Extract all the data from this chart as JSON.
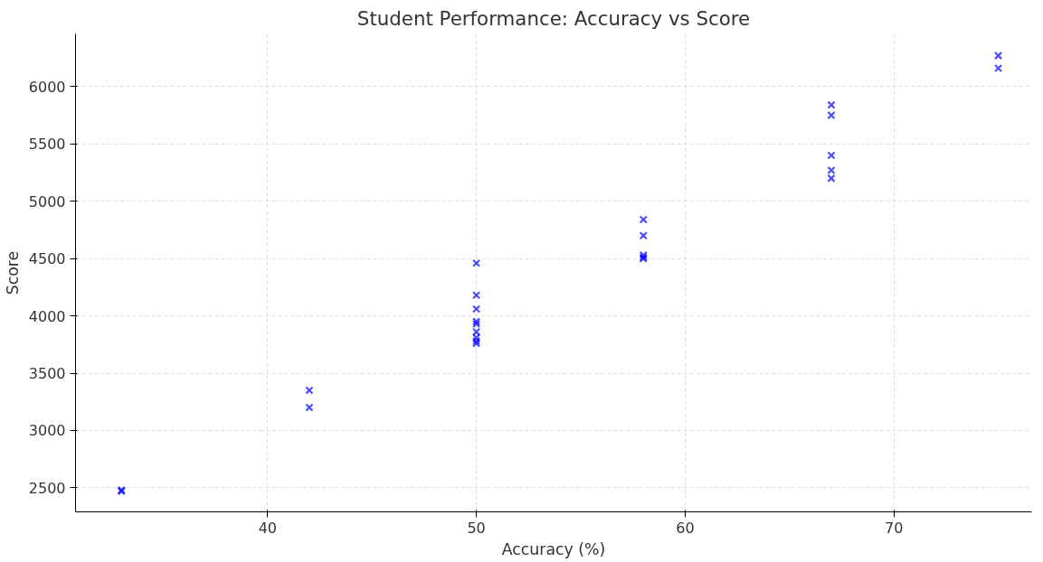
{
  "chart_data": {
    "type": "scatter",
    "title": "Student Performance: Accuracy vs Score",
    "xlabel": "Accuracy (%)",
    "ylabel": "Score",
    "x": [
      33,
      33,
      42,
      42,
      50,
      50,
      50,
      50,
      50,
      50,
      50,
      50,
      50,
      58,
      58,
      58,
      58,
      58,
      67,
      67,
      67,
      67,
      67,
      75,
      75
    ],
    "series": [
      {
        "color": "#0000ff",
        "values": [
          2480,
          2470,
          3350,
          3200,
          4460,
          4180,
          4060,
          3950,
          3930,
          3860,
          3810,
          3780,
          3760,
          4840,
          4700,
          4530,
          4510,
          4500,
          5840,
          5750,
          5400,
          5270,
          5200,
          6270,
          6160
        ]
      }
    ],
    "xlim": [
      30.8,
      76.6
    ],
    "ylim": [
      2290,
      6460
    ],
    "xticks": [
      40,
      50,
      60,
      70
    ],
    "yticks": [
      2500,
      3000,
      3500,
      4000,
      4500,
      5000,
      5500,
      6000
    ],
    "grid": true,
    "marker": "cross"
  }
}
